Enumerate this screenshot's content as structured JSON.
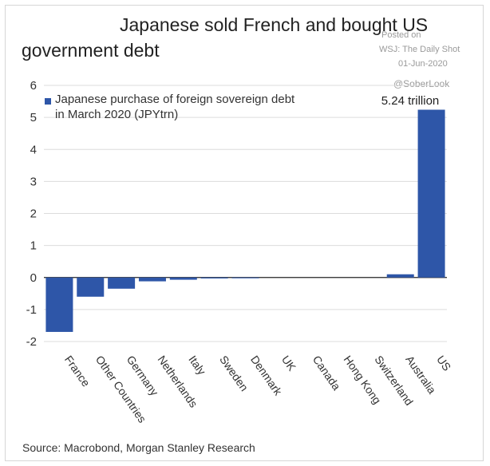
{
  "header": {
    "title_line1": "Japanese sold French and bought US",
    "title_line2": "government debt",
    "posted_on": "Posted on",
    "posted_source": "WSJ: The Daily Shot",
    "posted_date": "01-Jun-2020",
    "handle": "@SoberLook"
  },
  "footer": {
    "source": "Source: Macrobond, Morgan Stanley Research"
  },
  "chart_data": {
    "type": "bar",
    "categories": [
      "France",
      "Other Countries",
      "Germany",
      "Netherlands",
      "Italy",
      "Sweden",
      "Denmark",
      "UK",
      "Canada",
      "Hong Kong",
      "Switzerland",
      "Australia",
      "US"
    ],
    "series": [
      {
        "name": "Japanese purchase of foreign sovereign debt in March 2020 (JPYtrn)",
        "legend_line1": "Japanese purchase of foreign sovereign debt",
        "legend_line2": "in March 2020 (JPYtrn)",
        "values": [
          -1.7,
          -0.6,
          -0.35,
          -0.12,
          -0.07,
          -0.03,
          -0.02,
          0,
          0,
          0,
          0,
          0.1,
          5.24
        ]
      }
    ],
    "data_label": "5.24 trillion",
    "yticks": [
      "6",
      "5",
      "4",
      "3",
      "2",
      "1",
      "0",
      "-1",
      "-2"
    ],
    "ylim": [
      -2,
      6
    ],
    "grid": true,
    "legend_position": "top-left",
    "bar_color": "#2e56a8"
  }
}
